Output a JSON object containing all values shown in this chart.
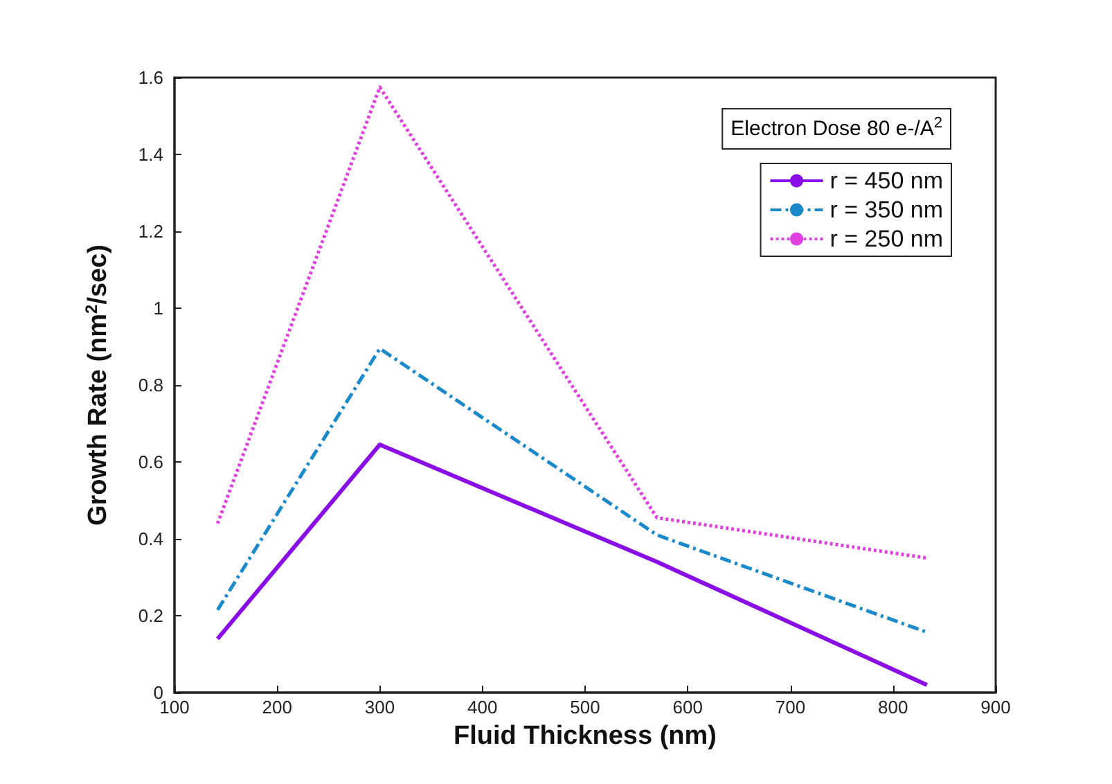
{
  "chart_data": {
    "type": "line",
    "xlabel": "Fluid Thickness (nm)",
    "ylabel": "Growth Rate (nm$^{2}$/sec)",
    "annotations": [
      "Electron Dose 80 e-/A$^{2}$"
    ],
    "x": [
      142,
      300,
      570,
      833
    ],
    "series": [
      {
        "name": "r = 450 nm",
        "color": "#8a0ee6",
        "line_style": "solid",
        "values": [
          0.14,
          0.645,
          0.34,
          0.02
        ]
      },
      {
        "name": "r = 350 nm",
        "color": "#1a8acb",
        "line_style": "dashdot",
        "values": [
          0.215,
          0.895,
          0.41,
          0.157
        ]
      },
      {
        "name": "r = 250 nm",
        "color": "#e040e0",
        "line_style": "dotted",
        "values": [
          0.44,
          1.575,
          0.455,
          0.35
        ]
      }
    ],
    "xlim": [
      100,
      900
    ],
    "xticks": [
      100,
      200,
      300,
      400,
      500,
      600,
      700,
      800,
      900
    ],
    "ylim": [
      0,
      1.6
    ],
    "yticks": [
      0,
      0.2,
      0.4,
      0.6,
      0.8,
      1,
      1.2,
      1.4,
      1.6
    ],
    "grid": false,
    "legend": "top right",
    "marker": "none"
  }
}
